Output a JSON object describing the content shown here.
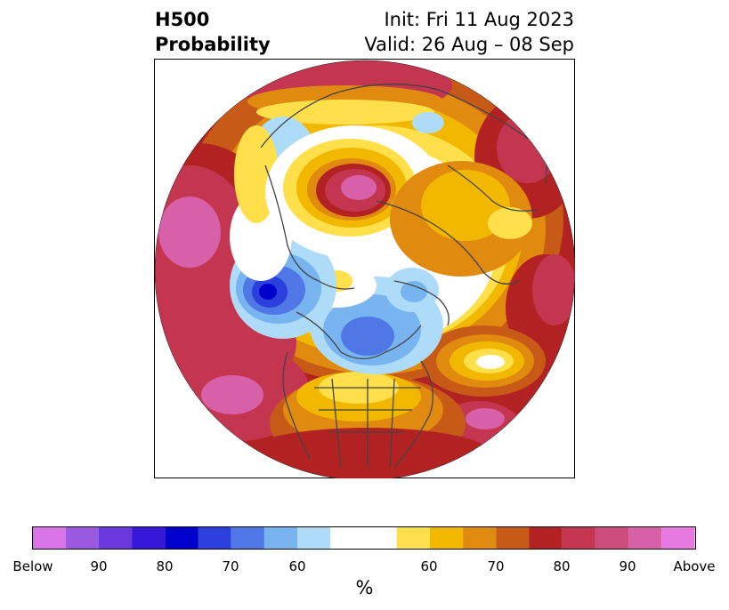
{
  "title": {
    "left_line1": "H500",
    "left_line2": "Probability",
    "right_line1": "Init: Fri 11 Aug 2023",
    "right_line2": "Valid: 26 Aug – 08 Sep"
  },
  "colorbar": {
    "label": "%",
    "ticks": [
      "Below",
      "90",
      "80",
      "70",
      "60",
      "60",
      "70",
      "80",
      "90",
      "Above"
    ],
    "colors": [
      "#d874e8",
      "#9b59e0",
      "#6a38dc",
      "#3818d8",
      "#0000cd",
      "#2a3fdc",
      "#4f78e6",
      "#78b4f0",
      "#aedcf8",
      "#ffffff",
      "#ffe04a",
      "#f2b800",
      "#e08a10",
      "#c85a18",
      "#b22222",
      "#c43650",
      "#cc4c7c",
      "#d860a8",
      "#e67ae0"
    ]
  },
  "map": {
    "projection": "north-polar-stereographic",
    "colors": {
      "white": "#ffffff",
      "yellow": "#ffe04a",
      "gold": "#f2b800",
      "orange": "#e08a10",
      "rust": "#c85a18",
      "red": "#b22222",
      "crimson": "#c43650",
      "rose": "#cc4c7c",
      "pink": "#d860a8",
      "magenta": "#e67ae0",
      "sky": "#aedcf8",
      "lightblue": "#78b4f0",
      "blue": "#4f78e6",
      "royal": "#2a3fdc",
      "navy": "#0000cd"
    }
  }
}
